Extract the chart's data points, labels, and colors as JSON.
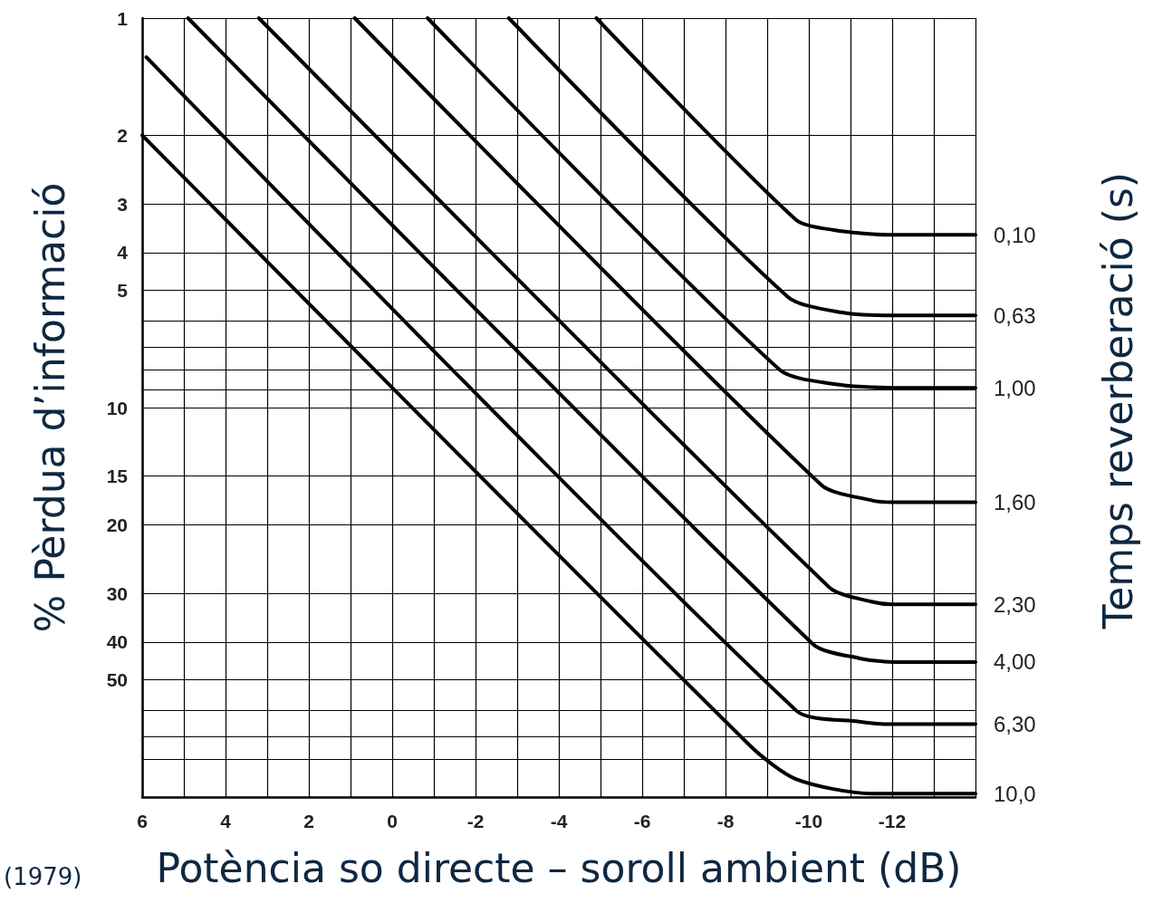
{
  "chart_data": {
    "type": "line",
    "xlabel": "Potència so directe – soroll ambient (dB)",
    "ylabel": "% Pèrdua d’informació",
    "y2label": "Temps reverberació (s)",
    "annotations": [
      "(1979)"
    ],
    "xlim": [
      6,
      -14
    ],
    "xticks": [
      6,
      {
        "value": 5,
        "label": null
      },
      4,
      {
        "value": 3,
        "label": null
      },
      2,
      {
        "value": 1,
        "label": null
      },
      0,
      {
        "value": -1,
        "label": null
      },
      -2,
      {
        "value": -3,
        "label": null
      },
      -4,
      {
        "value": -5,
        "label": null
      },
      -6,
      {
        "value": -7,
        "label": null
      },
      -8,
      {
        "value": -9,
        "label": null
      },
      -10,
      {
        "value": -11,
        "label": null
      },
      -12,
      {
        "value": -13,
        "label": null
      },
      {
        "value": -14,
        "label": null
      }
    ],
    "ylim": [
      100,
      1
    ],
    "yticks": [
      1,
      2,
      3,
      4,
      5,
      {
        "value": 6,
        "label": null
      },
      {
        "value": 7,
        "label": null
      },
      {
        "value": 8,
        "label": null
      },
      {
        "value": 9,
        "label": null
      },
      10,
      15,
      20,
      30,
      40,
      50,
      {
        "value": 60,
        "label": null
      },
      {
        "value": 70,
        "label": null
      },
      {
        "value": 80,
        "label": null
      },
      {
        "value": 100,
        "label": null
      }
    ],
    "log": "y",
    "grid": true,
    "legend": false,
    "marker": "none",
    "line_style": "solid",
    "series": [
      {
        "name": "0,10",
        "color": "#000000",
        "x": [
          -4.9,
          -9.7,
          -10.6,
          -11.9,
          -14
        ],
        "values": [
          1,
          3.3,
          3.5,
          3.6,
          3.6
        ]
      },
      {
        "name": "0,63",
        "color": "#000000",
        "x": [
          -2.8,
          -9.5,
          -10.8,
          -12,
          -14
        ],
        "values": [
          1,
          5.2,
          5.7,
          5.8,
          5.8
        ]
      },
      {
        "name": "1,00",
        "color": "#000000",
        "x": [
          -0.85,
          -9.3,
          -10.6,
          -12,
          -14
        ],
        "values": [
          1,
          8.0,
          8.7,
          8.9,
          8.9
        ]
      },
      {
        "name": "1,60",
        "color": "#000000",
        "x": [
          0.9,
          -10.3,
          -11.5,
          -12,
          -14
        ],
        "values": [
          1,
          15.8,
          17.3,
          17.5,
          17.5
        ]
      },
      {
        "name": "2,30",
        "color": "#000000",
        "x": [
          3.2,
          -10.5,
          -11.5,
          -12,
          -14
        ],
        "values": [
          1,
          29,
          31.5,
          32,
          32
        ]
      },
      {
        "name": "4,00",
        "color": "#000000",
        "x": [
          4.9,
          -10.1,
          -11.2,
          -12,
          -14
        ],
        "values": [
          1,
          40.5,
          44,
          45,
          45
        ]
      },
      {
        "name": "6,30",
        "color": "#000000",
        "x": [
          5.9,
          -9.7,
          -11.2,
          -12,
          -14
        ],
        "values": [
          1.26,
          60,
          64,
          65,
          65
        ]
      },
      {
        "name": "10,0",
        "color": "#000000",
        "x": [
          6,
          -8.6,
          -9.7,
          -11.5,
          -14
        ],
        "values": [
          2,
          74,
          90,
          98,
          98
        ]
      }
    ]
  }
}
